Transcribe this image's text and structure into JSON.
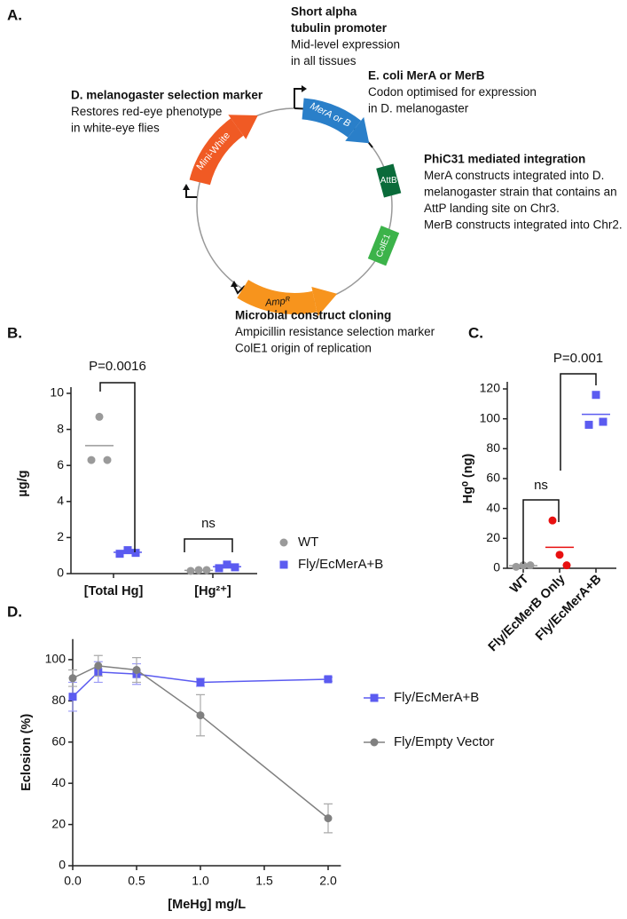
{
  "panel_labels": [
    "A.",
    "B.",
    "C.",
    "D."
  ],
  "diagram": {
    "elements": [
      "Mini-White",
      "MerA or B",
      "AttB",
      "ColE1",
      "Ampᴿ"
    ],
    "notes": [
      {
        "heading": [
          "Short alpha",
          "tubulin promoter"
        ],
        "body": [
          "Mid-level expression",
          "in all tissues"
        ]
      },
      {
        "heading": [
          "E. coli MerA or MerB"
        ],
        "body": [
          "Codon optimised for expression",
          "in D. melanogaster"
        ]
      },
      {
        "heading": [
          "D. melanogaster selection marker"
        ],
        "body": [
          "Restores red-eye phenotype",
          "in white-eye flies"
        ]
      },
      {
        "heading": [
          "PhiC31 mediated integration"
        ],
        "body": [
          "MerA constructs integrated into D.",
          "melanogaster strain that contains an",
          "AttP landing site on Chr3.",
          "MerB constructs integrated into Chr2."
        ]
      },
      {
        "heading": [
          "Microbial construct cloning"
        ],
        "body": [
          "Ampicillin resistance selection marker",
          "ColE1 origin of replication"
        ]
      }
    ]
  },
  "chart_data": [
    {
      "type": "dot",
      "ylabel": "µg/g",
      "categories": [
        "[Total Hg]",
        "[Hg²⁺]"
      ],
      "ylim": [
        0,
        10
      ],
      "yticks": [
        0,
        2,
        4,
        6,
        8,
        10
      ],
      "series": [
        {
          "name": "WT",
          "color": "#9a9a9a",
          "marker": "circle",
          "values": [
            [
              6.3,
              8.7,
              6.3
            ],
            [
              0.15,
              0.2,
              0.2
            ]
          ],
          "means": [
            7.1,
            0.18
          ]
        },
        {
          "name": "Fly/EcMerA+B",
          "color": "#5b5bf0",
          "marker": "square",
          "values": [
            [
              1.1,
              1.3,
              1.15
            ],
            [
              0.3,
              0.5,
              0.35
            ]
          ],
          "means": [
            1.18,
            0.38
          ]
        }
      ],
      "annotations": [
        "P=0.0016",
        "ns"
      ]
    },
    {
      "type": "dot",
      "ylabel": "Hg⁰ (ng)",
      "categories": [
        "WT",
        "Fly/EcMerB Only",
        "Fly/EcMerA+B"
      ],
      "ylim": [
        0,
        120
      ],
      "yticks": [
        0,
        20,
        40,
        60,
        80,
        100,
        120
      ],
      "values": [
        [
          1,
          2,
          2
        ],
        [
          32,
          9,
          2
        ],
        [
          96,
          116,
          98
        ]
      ],
      "means": [
        1.7,
        14,
        103
      ],
      "colors": [
        "#9a9a9a",
        "#e81010",
        "#5b5bf0"
      ],
      "markers": [
        "circle",
        "circle",
        "square"
      ],
      "annotations": [
        "P=0.001",
        "ns"
      ]
    },
    {
      "type": "line",
      "xlabel": "[MeHg] mg/L",
      "ylabel": "Eclosion (%)",
      "xlim": [
        0,
        2.1
      ],
      "xticks": [
        {
          "value": 0,
          "label": "0.0"
        },
        0.5,
        {
          "value": 1,
          "label": "1.0"
        },
        1.5,
        {
          "value": 2,
          "label": "2.0"
        }
      ],
      "ylim": [
        0,
        110
      ],
      "yticks": [
        0,
        20,
        40,
        60,
        80,
        100
      ],
      "series": [
        {
          "name": "Fly/EcMerA+B",
          "color": "#5b5bf0",
          "marker": "square",
          "x": [
            0,
            0.2,
            0.5,
            1,
            2
          ],
          "values": [
            82,
            94,
            93,
            89,
            90.5
          ],
          "errors": [
            7,
            5,
            5,
            2,
            1
          ]
        },
        {
          "name": "Fly/Empty Vector",
          "color": "#808080",
          "marker": "circle",
          "x": [
            0,
            0.2,
            0.5,
            1,
            2
          ],
          "values": [
            91,
            97,
            95,
            73,
            23
          ],
          "errors": [
            4,
            5,
            6,
            10,
            7
          ]
        }
      ]
    }
  ]
}
